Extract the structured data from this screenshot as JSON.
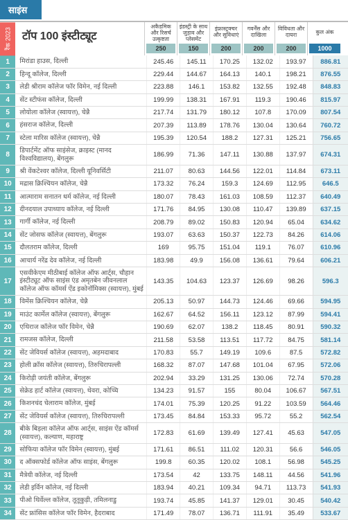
{
  "section_label": "साइंस",
  "year_label": "रैंक 2023",
  "title_prefix": "टॉप",
  "title_number": "100",
  "title_suffix": "इंस्टीट्यूट",
  "columns": [
    {
      "label": "अकैडमिक और रिसर्च उत्कृष्टता",
      "max": "250"
    },
    {
      "label": "इंडस्ट्री के साथ जुड़ाव और प्लेसमेंट",
      "max": "150"
    },
    {
      "label": "इंफ्रास्ट्रक्चर और सुविधाएं",
      "max": "200"
    },
    {
      "label": "गवर्नेंस और दाखिला",
      "max": "200"
    },
    {
      "label": "विविधता और दायरा",
      "max": "200"
    },
    {
      "label": "कुल अंक",
      "max": "1000"
    }
  ],
  "rows": [
    {
      "r": "1",
      "n": "मिरांडा हाउस, दिल्ली",
      "v": [
        "245.46",
        "145.11",
        "170.25",
        "132.02",
        "193.97",
        "886.81"
      ]
    },
    {
      "r": "2",
      "n": "हिन्दू कॉलेज, दिल्ली",
      "v": [
        "229.44",
        "144.67",
        "164.13",
        "140.1",
        "198.21",
        "876.55"
      ]
    },
    {
      "r": "3",
      "n": "लेडी श्रीराम कॉलेज फॉर विमेन, नई दिल्ली",
      "v": [
        "223.88",
        "146.1",
        "153.82",
        "132.55",
        "192.48",
        "848.83"
      ]
    },
    {
      "r": "4",
      "n": "सेंट स्टीफंस कॉलेज, दिल्ली",
      "v": [
        "199.99",
        "138.31",
        "167.91",
        "119.3",
        "190.46",
        "815.97"
      ]
    },
    {
      "r": "5",
      "n": "लोयोला कॉलेज (स्वायत्त), चेन्नै",
      "v": [
        "217.74",
        "131.79",
        "180.12",
        "107.8",
        "170.09",
        "807.54"
      ]
    },
    {
      "r": "6",
      "n": "हंसराज कॉलेज, दिल्ली",
      "v": [
        "207.39",
        "113.89",
        "178.76",
        "130.04",
        "130.64",
        "760.72"
      ]
    },
    {
      "r": "7",
      "n": "स्टेला मारिस कॉलेज (स्वायत्त), चेन्नै",
      "v": [
        "195.39",
        "120.54",
        "188.2",
        "127.31",
        "125.21",
        "756.65"
      ]
    },
    {
      "r": "8",
      "n": "डिपार्टमेंट ऑफ साइंसेज, क्राइस्ट (मानद विश्वविद्यालय), बेंगलुरू",
      "v": [
        "186.99",
        "71.36",
        "147.11",
        "130.88",
        "137.97",
        "674.31"
      ]
    },
    {
      "r": "9",
      "n": "श्री वेंकटेश्वर कॉलेज, दिल्ली यूनिवर्सिटी",
      "v": [
        "211.07",
        "80.63",
        "144.56",
        "122.01",
        "114.84",
        "673.11"
      ]
    },
    {
      "r": "10",
      "n": "मद्रास क्रिश्चियन कॉलेज, चेन्नै",
      "v": [
        "173.32",
        "76.24",
        "159.3",
        "124.69",
        "112.95",
        "646.5"
      ]
    },
    {
      "r": "11",
      "n": "आत्माराम सनातन धर्म कॉलेज, नई दिल्ली",
      "v": [
        "180.07",
        "78.43",
        "161.03",
        "108.59",
        "112.37",
        "640.49"
      ]
    },
    {
      "r": "12",
      "n": "दीनदयाल उपाध्याय कॉलेज, नई दिल्ली",
      "v": [
        "171.76",
        "84.95",
        "130.08",
        "110.47",
        "139.89",
        "637.15"
      ]
    },
    {
      "r": "13",
      "n": "गार्गी कॉलेज, नई दिल्ली",
      "v": [
        "208.79",
        "89.02",
        "150.83",
        "120.94",
        "65.04",
        "634.62"
      ]
    },
    {
      "r": "14",
      "n": "सेंट जोसफ कॉलेज (स्वायत्त), बेंगलुरू",
      "v": [
        "193.07",
        "63.63",
        "150.37",
        "122.73",
        "84.26",
        "614.06"
      ]
    },
    {
      "r": "15",
      "n": "दौलतराम कॉलेज, दिल्ली",
      "v": [
        "169",
        "95.75",
        "151.04",
        "119.1",
        "76.07",
        "610.96"
      ]
    },
    {
      "r": "16",
      "n": "आचार्य नरेंद्र देव कॉलेज, नई दिल्ली",
      "v": [
        "183.98",
        "49.9",
        "156.08",
        "136.61",
        "79.64",
        "606.21"
      ]
    },
    {
      "r": "17",
      "n": "एसवीकेएम मीठीबाई कॉलेज ऑफ आर्ट्स, चौहान इंस्टीट्यूट ऑफ साइंस एंड अमृतबेन जीवनलाल कॉलेज ऑफ कॉमर्स ऐंड इकोनॉमिक्स (स्वायत्त), मुंबई",
      "v": [
        "143.35",
        "104.63",
        "123.37",
        "126.69",
        "98.26",
        "596.3"
      ]
    },
    {
      "r": "18",
      "n": "विमेंस क्रिश्चियन कॉलेज, चेन्नै",
      "v": [
        "205.13",
        "50.97",
        "144.73",
        "124.46",
        "69.66",
        "594.95"
      ]
    },
    {
      "r": "19",
      "n": "माउंट कार्मेल कॉलेज (स्वायत्त), बेंगलुरू",
      "v": [
        "162.67",
        "64.52",
        "156.11",
        "123.12",
        "87.99",
        "594.41"
      ]
    },
    {
      "r": "20",
      "n": "एथिराज कॉलेज फॉर विमेन, चेन्नै",
      "v": [
        "190.69",
        "62.07",
        "138.2",
        "118.45",
        "80.91",
        "590.32"
      ]
    },
    {
      "r": "21",
      "n": "रामजस कॉलेज, दिल्ली",
      "v": [
        "211.58",
        "53.58",
        "113.51",
        "117.72",
        "84.75",
        "581.14"
      ]
    },
    {
      "r": "22",
      "n": "सेंट जेवियर्स कॉलेज (स्वायत्त), अहमदाबाद",
      "v": [
        "170.83",
        "55.7",
        "149.19",
        "109.6",
        "87.5",
        "572.82"
      ]
    },
    {
      "r": "23",
      "n": "होली क्रॉस कॉलेज (स्वायत्त), तिरुचिरापल्ली",
      "v": [
        "168.32",
        "87.07",
        "147.68",
        "101.04",
        "67.95",
        "572.06"
      ]
    },
    {
      "r": "24",
      "n": "किरोड़ी जयंती कॉलेज, बेंगलुरू",
      "v": [
        "202.94",
        "33.29",
        "131.25",
        "130.06",
        "72.74",
        "570.28"
      ]
    },
    {
      "r": "25",
      "n": "सेक्रेड हार्ट कॉलेज (स्वायत्त), थेवरा, कोच्चि",
      "v": [
        "134.23",
        "91.57",
        "155",
        "80.04",
        "106.67",
        "567.51"
      ]
    },
    {
      "r": "26",
      "n": "किशनचंद चेलाराम कॉलेज, मुंबई",
      "v": [
        "174.01",
        "75.39",
        "120.25",
        "91.22",
        "103.59",
        "564.46"
      ]
    },
    {
      "r": "27",
      "n": "सेंट जेवियर्स कॉलेज (स्वायत्त), तिरुचिरापल्ली",
      "v": [
        "173.45",
        "84.84",
        "153.33",
        "95.72",
        "55.2",
        "562.54"
      ]
    },
    {
      "r": "28",
      "n": "बीके बिड़ला कॉलेज ऑफ आर्ट्स, साइंस ऐंड कॉमर्स (स्वायत्त), कल्याण, महाराष्ट्र",
      "v": [
        "172.83",
        "61.69",
        "139.49",
        "127.41",
        "45.63",
        "547.05"
      ]
    },
    {
      "r": "29",
      "n": "सोफिया कॉलेज फॉर विमेन (स्वायत्त), मुंबई",
      "v": [
        "171.61",
        "86.51",
        "111.02",
        "120.31",
        "56.6",
        "546.05"
      ]
    },
    {
      "r": "30",
      "n": "द ऑक्सफोर्ड कॉलेज ऑफ साइंस, बेंगलुरू",
      "v": [
        "199.8",
        "60.35",
        "120.02",
        "108.1",
        "56.98",
        "545.25"
      ]
    },
    {
      "r": "31",
      "n": "मैत्रेयी कॉलेज, नई दिल्ली",
      "v": [
        "173.54",
        "42",
        "133.75",
        "148.11",
        "44.56",
        "541.96"
      ]
    },
    {
      "r": "32",
      "n": "लेडी इर्विन कॉलेज, नई दिल्ली",
      "v": [
        "183.94",
        "40.21",
        "109.34",
        "94.71",
        "113.73",
        "541.93"
      ]
    },
    {
      "r": "33",
      "n": "पीओ थिर्वेल्ल कॉलेज, तूतूकुड़ी, तमिलनाडु",
      "v": [
        "193.74",
        "45.85",
        "141.37",
        "129.01",
        "30.45",
        "540.42"
      ]
    },
    {
      "r": "34",
      "n": "सेंट फ्रांसिस कॉलेज फॉर विमेन, हैदराबाद",
      "v": [
        "171.49",
        "78.07",
        "136.71",
        "111.91",
        "35.49",
        "533.67"
      ]
    }
  ]
}
